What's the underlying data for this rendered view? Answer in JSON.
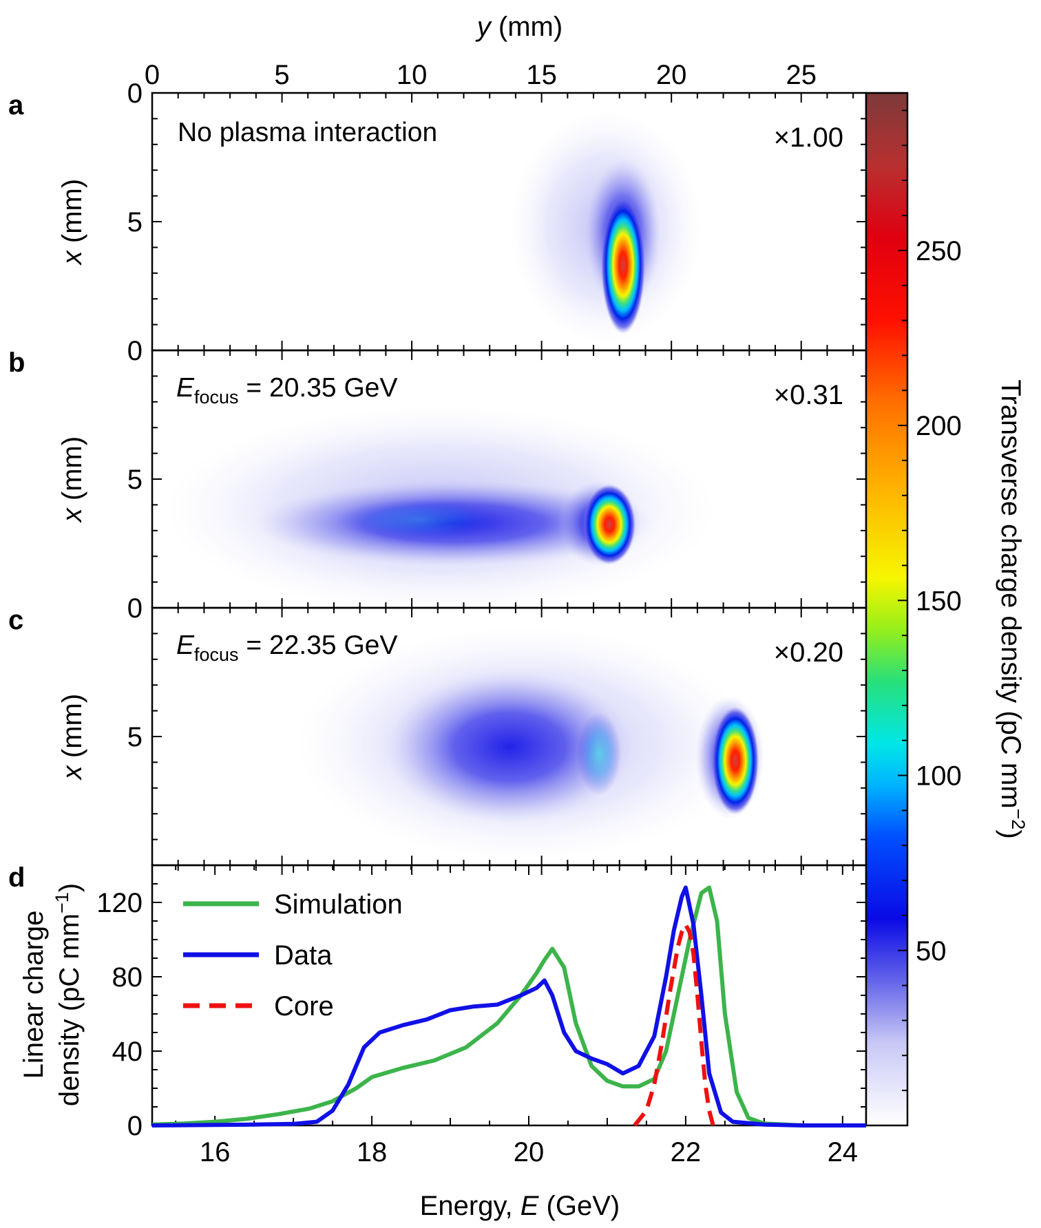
{
  "panels": [
    {
      "letter": "a",
      "annotation": "No plasma interaction",
      "annotation_sub": "",
      "annotation_rest": "",
      "scale": "×1.00"
    },
    {
      "letter": "b",
      "annotation": "E",
      "annotation_sub": "focus",
      "annotation_rest": " = 20.35 GeV",
      "scale": "×0.31"
    },
    {
      "letter": "c",
      "annotation": "E",
      "annotation_sub": "focus",
      "annotation_rest": " = 22.35 GeV",
      "scale": "×0.20"
    },
    {
      "letter": "d",
      "annotation": "",
      "annotation_sub": "",
      "annotation_rest": "",
      "scale": ""
    }
  ],
  "top_axis": {
    "label_var": "y",
    "label_unit": " (mm)",
    "ticks": [
      "0",
      "5",
      "10",
      "15",
      "20",
      "25"
    ],
    "range": [
      0,
      27.5
    ]
  },
  "image_axis": {
    "label_var": "x",
    "label_unit": " (mm)",
    "ticks": [
      "0",
      "5"
    ]
  },
  "colorbar": {
    "label": "Transverse charge density (pC mm",
    "label_sup": "−2",
    "label_close": ")",
    "ticks": [
      "50",
      "100",
      "150",
      "200",
      "250"
    ],
    "range": [
      0,
      295
    ]
  },
  "chart_data": {
    "type": "line",
    "xlabel": "Energy, ",
    "xlabel_var": "E",
    "xlabel_unit": " (GeV)",
    "ylabel_line1": "Linear charge",
    "ylabel_line2": "density (pC mm",
    "ylabel_sup": "−1",
    "ylabel_close": ")",
    "xlim": [
      15.2,
      24.3
    ],
    "ylim": [
      0,
      140
    ],
    "xticks": [
      "16",
      "18",
      "20",
      "22",
      "24"
    ],
    "yticks": [
      "0",
      "40",
      "80",
      "120"
    ],
    "series": [
      {
        "name": "Simulation",
        "color": "#3cb44b",
        "dash": false,
        "x": [
          15.2,
          15.6,
          16.0,
          16.4,
          16.8,
          17.2,
          17.5,
          17.8,
          18.0,
          18.4,
          18.8,
          19.2,
          19.6,
          19.9,
          20.1,
          20.2,
          20.3,
          20.45,
          20.6,
          20.8,
          21.0,
          21.2,
          21.4,
          21.6,
          21.75,
          21.9,
          22.05,
          22.2,
          22.3,
          22.4,
          22.5,
          22.65,
          22.8,
          23.0,
          23.5,
          24.3
        ],
        "y": [
          0.5,
          1,
          2,
          3.5,
          6,
          9,
          13,
          20,
          26,
          31,
          35,
          42,
          55,
          70,
          82,
          89,
          95,
          85,
          55,
          32,
          24,
          21,
          21,
          25,
          40,
          70,
          100,
          125,
          128,
          110,
          60,
          18,
          4,
          1,
          0,
          0
        ]
      },
      {
        "name": "Data",
        "color": "#1010e6",
        "dash": false,
        "x": [
          15.2,
          16.0,
          16.5,
          17.0,
          17.3,
          17.5,
          17.7,
          17.9,
          18.1,
          18.4,
          18.7,
          19.0,
          19.3,
          19.6,
          19.9,
          20.1,
          20.2,
          20.3,
          20.45,
          20.6,
          20.8,
          21.0,
          21.2,
          21.4,
          21.6,
          21.75,
          21.85,
          21.95,
          22.0,
          22.1,
          22.2,
          22.3,
          22.45,
          22.6,
          23.0,
          23.5,
          24.3
        ],
        "y": [
          0,
          0.3,
          0.5,
          0.8,
          2,
          8,
          22,
          42,
          50,
          54,
          57,
          62,
          64,
          65,
          70,
          74,
          78,
          70,
          50,
          40,
          36,
          33,
          28,
          32,
          48,
          80,
          105,
          123,
          128,
          108,
          70,
          28,
          7,
          2,
          0.5,
          0,
          0
        ]
      },
      {
        "name": "Core",
        "color": "#ee1111",
        "dash": true,
        "x": [
          21.35,
          21.5,
          21.6,
          21.7,
          21.8,
          21.9,
          21.95,
          22.0,
          22.05,
          22.1,
          22.15,
          22.2,
          22.25,
          22.3,
          22.35
        ],
        "y": [
          0,
          8,
          22,
          45,
          72,
          96,
          104,
          108,
          104,
          92,
          70,
          45,
          22,
          8,
          0
        ]
      }
    ]
  }
}
